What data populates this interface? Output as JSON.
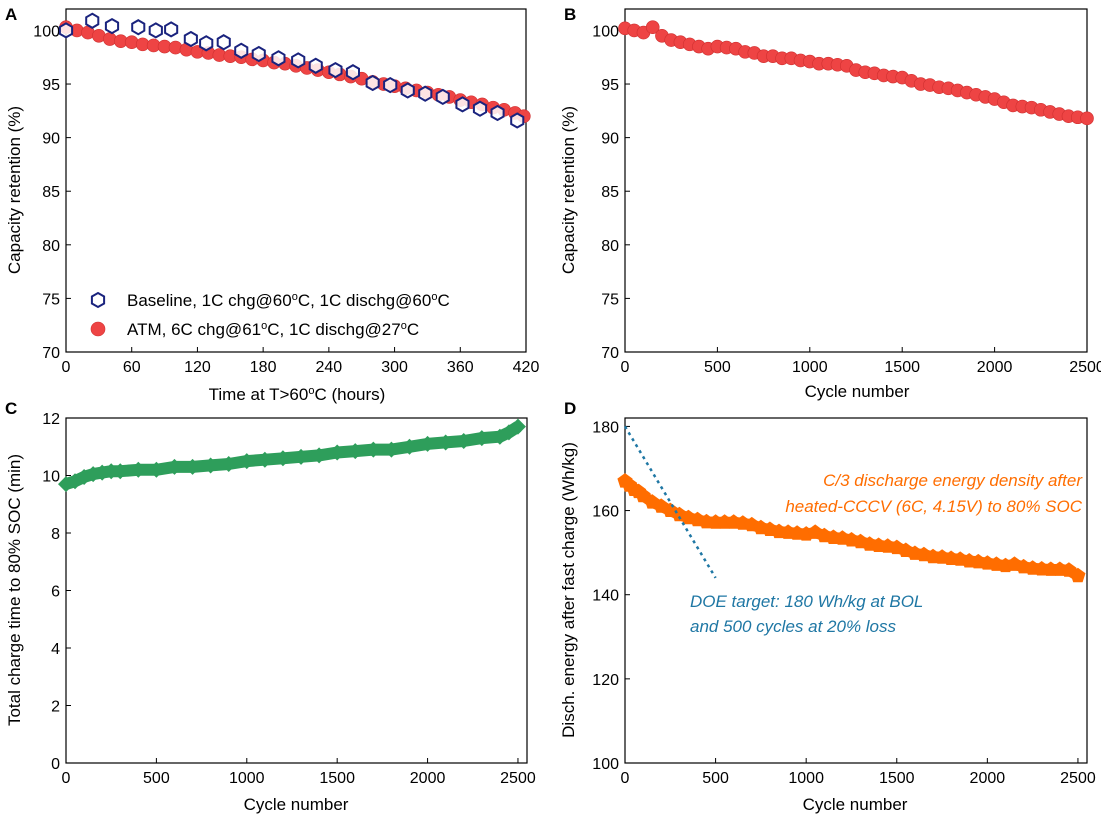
{
  "colors": {
    "red_marker": "#ee4444",
    "red_marker_edge": "#d03030",
    "baseline_marker": "#1a237e",
    "green_marker": "#2e9e5b",
    "orange_marker": "#ff6d00",
    "orange_text": "#ff6d00",
    "doe_blue": "#1f77a4",
    "axis": "#000000"
  },
  "chart_data": [
    {
      "panel": "A",
      "type": "scatter",
      "xlabel_main": "Time at T>60",
      "xlabel_sup": "o",
      "xlabel_tail": "C (hours)",
      "ylabel": "Capacity retention (%)",
      "xlim": [
        0,
        420
      ],
      "ylim": [
        70,
        102
      ],
      "xticks": [
        0,
        60,
        120,
        180,
        240,
        300,
        360,
        420
      ],
      "yticks": [
        70,
        75,
        80,
        85,
        90,
        95,
        100
      ],
      "legend": [
        {
          "prefix": "Baseline, 1C chg@60",
          "sup1": "o",
          "mid": "C, 1C dischg@60",
          "sup2": "o",
          "suffix": "C"
        },
        {
          "prefix": "ATM, 6C chg@61",
          "sup1": "o",
          "mid": "C, 1C dischg@27",
          "sup2": "o",
          "suffix": "C"
        }
      ],
      "series": [
        {
          "name": "Baseline, 1C chg@60oC, 1C dischg@60oC",
          "marker": "hexagon-open",
          "x": [
            0,
            24,
            42,
            66,
            82,
            96,
            114,
            128,
            144,
            160,
            176,
            194,
            212,
            228,
            246,
            262,
            280,
            296,
            312,
            328,
            344,
            362,
            378,
            394,
            412
          ],
          "y": [
            100.0,
            100.9,
            100.4,
            100.3,
            100.0,
            100.1,
            99.2,
            98.8,
            98.9,
            98.1,
            97.8,
            97.4,
            97.2,
            96.7,
            96.3,
            96.1,
            95.1,
            94.9,
            94.4,
            94.1,
            93.8,
            93.1,
            92.7,
            92.3,
            91.6
          ]
        },
        {
          "name": "ATM, 6C chg@61oC, 1C dischg@27oC",
          "marker": "circle-filled",
          "x": [
            0,
            10,
            20,
            30,
            40,
            50,
            60,
            70,
            80,
            90,
            100,
            110,
            120,
            130,
            140,
            150,
            160,
            170,
            180,
            190,
            200,
            210,
            220,
            230,
            240,
            250,
            260,
            270,
            280,
            290,
            300,
            310,
            320,
            330,
            340,
            350,
            360,
            370,
            380,
            390,
            400,
            410,
            418
          ],
          "y": [
            100.3,
            100.0,
            99.8,
            99.5,
            99.2,
            99.0,
            98.9,
            98.7,
            98.6,
            98.5,
            98.4,
            98.2,
            98.0,
            97.9,
            97.7,
            97.6,
            97.5,
            97.3,
            97.2,
            97.0,
            96.9,
            96.7,
            96.5,
            96.3,
            96.1,
            95.9,
            95.7,
            95.5,
            95.2,
            95.0,
            94.8,
            94.6,
            94.4,
            94.2,
            94.0,
            93.8,
            93.5,
            93.3,
            93.1,
            92.8,
            92.6,
            92.3,
            92.0
          ]
        }
      ]
    },
    {
      "panel": "B",
      "type": "scatter",
      "xlabel": "Cycle number",
      "ylabel": "Capacity retention (%)",
      "xlim": [
        0,
        2500
      ],
      "ylim": [
        70,
        102
      ],
      "xticks": [
        0,
        500,
        1000,
        1500,
        2000,
        2500
      ],
      "yticks": [
        70,
        75,
        80,
        85,
        90,
        95,
        100
      ],
      "series": [
        {
          "name": "ATM capacity retention",
          "marker": "circle-filled",
          "x": [
            0,
            50,
            100,
            150,
            200,
            250,
            300,
            350,
            400,
            450,
            500,
            550,
            600,
            650,
            700,
            750,
            800,
            850,
            900,
            950,
            1000,
            1050,
            1100,
            1150,
            1200,
            1250,
            1300,
            1350,
            1400,
            1450,
            1500,
            1550,
            1600,
            1650,
            1700,
            1750,
            1800,
            1850,
            1900,
            1950,
            2000,
            2050,
            2100,
            2150,
            2200,
            2250,
            2300,
            2350,
            2400,
            2450,
            2500
          ],
          "y": [
            100.2,
            100.0,
            99.8,
            100.3,
            99.5,
            99.1,
            98.9,
            98.7,
            98.5,
            98.3,
            98.5,
            98.4,
            98.3,
            98.0,
            97.9,
            97.6,
            97.6,
            97.4,
            97.4,
            97.2,
            97.1,
            96.9,
            96.9,
            96.8,
            96.7,
            96.3,
            96.1,
            96.0,
            95.8,
            95.7,
            95.6,
            95.3,
            95.0,
            94.9,
            94.7,
            94.6,
            94.4,
            94.2,
            94.0,
            93.8,
            93.6,
            93.3,
            93.0,
            92.9,
            92.8,
            92.6,
            92.4,
            92.2,
            92.0,
            91.9,
            91.8
          ]
        }
      ]
    },
    {
      "panel": "C",
      "type": "line",
      "xlabel": "Cycle number",
      "ylabel": "Total charge time to 80% SOC (min)",
      "xlim": [
        0,
        2550
      ],
      "ylim": [
        0,
        12
      ],
      "xticks": [
        0,
        500,
        1000,
        1500,
        2000,
        2500
      ],
      "yticks": [
        0,
        2,
        4,
        6,
        8,
        10,
        12
      ],
      "series": [
        {
          "name": "Total charge time",
          "marker": "diamond-filled",
          "x": [
            0,
            50,
            100,
            150,
            200,
            250,
            300,
            400,
            500,
            600,
            700,
            800,
            900,
            1000,
            1100,
            1200,
            1300,
            1400,
            1500,
            1600,
            1700,
            1800,
            1900,
            2000,
            2100,
            2200,
            2300,
            2400,
            2450,
            2500
          ],
          "y": [
            9.7,
            9.8,
            9.95,
            10.05,
            10.1,
            10.15,
            10.15,
            10.2,
            10.2,
            10.3,
            10.3,
            10.35,
            10.4,
            10.5,
            10.55,
            10.6,
            10.65,
            10.7,
            10.8,
            10.85,
            10.9,
            10.9,
            11.0,
            11.1,
            11.15,
            11.2,
            11.3,
            11.35,
            11.5,
            11.7
          ]
        }
      ]
    },
    {
      "panel": "D",
      "type": "line",
      "xlabel": "Cycle number",
      "ylabel": "Disch. energy after fast charge (Wh/kg)",
      "xlim": [
        0,
        2550
      ],
      "ylim": [
        100,
        182
      ],
      "xticks": [
        0,
        500,
        1000,
        1500,
        2000,
        2500
      ],
      "yticks": [
        100,
        120,
        140,
        160,
        180
      ],
      "annotation_orange": [
        "C/3 discharge energy density after",
        "heated-CCCV (6C, 4.15V) to 80% SOC"
      ],
      "annotation_blue": [
        "DOE target: 180 Wh/kg at BOL",
        "and 500 cycles at 20% loss"
      ],
      "doe_target": {
        "x": [
          0,
          500
        ],
        "y": [
          180,
          144
        ]
      },
      "series": [
        {
          "name": "C/3 discharge energy density",
          "marker": "pentagon-filled",
          "x": [
            0,
            25,
            50,
            75,
            100,
            150,
            200,
            250,
            300,
            350,
            400,
            450,
            500,
            550,
            600,
            650,
            700,
            750,
            800,
            850,
            900,
            950,
            1000,
            1050,
            1100,
            1150,
            1200,
            1250,
            1300,
            1350,
            1400,
            1450,
            1500,
            1550,
            1600,
            1650,
            1700,
            1750,
            1800,
            1850,
            1900,
            1950,
            2000,
            2050,
            2100,
            2150,
            2200,
            2250,
            2300,
            2350,
            2400,
            2450,
            2500
          ],
          "y": [
            167.0,
            166.0,
            165.0,
            164.5,
            163.5,
            162.0,
            161.0,
            160.0,
            159.0,
            158.3,
            157.8,
            157.3,
            157.2,
            157.2,
            157.2,
            157.0,
            156.6,
            155.9,
            155.5,
            155.0,
            154.8,
            154.6,
            154.4,
            154.8,
            154.0,
            153.6,
            153.4,
            153.0,
            152.6,
            152.0,
            151.7,
            151.5,
            151.2,
            150.5,
            149.8,
            149.5,
            149.0,
            148.9,
            148.6,
            148.4,
            148.0,
            147.8,
            147.5,
            147.2,
            146.9,
            147.2,
            146.6,
            146.3,
            146.1,
            146.0,
            146.0,
            145.8,
            144.5
          ]
        }
      ]
    }
  ]
}
